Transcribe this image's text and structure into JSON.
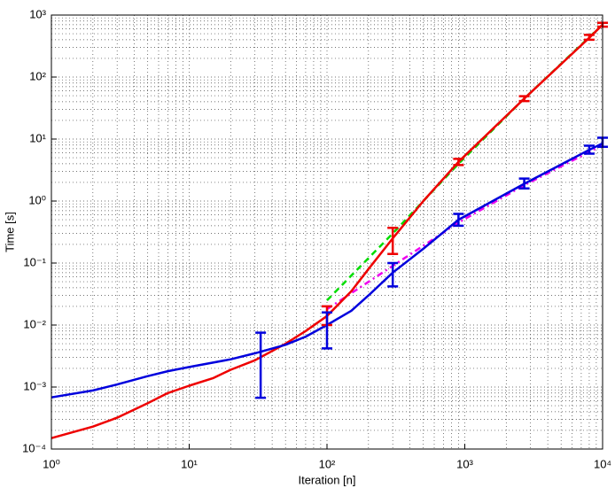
{
  "chart_data": {
    "type": "line",
    "xlabel": "Iteration [n]",
    "ylabel": "Time [s]",
    "xscale": "log",
    "yscale": "log",
    "grid": true,
    "minor_grid": true,
    "xlim": [
      1,
      10000
    ],
    "ylim": [
      0.0001,
      1000
    ],
    "xticks": [
      {
        "value": 1,
        "label": "10⁰"
      },
      {
        "value": 10,
        "label": "10¹"
      },
      {
        "value": 100,
        "label": "10²"
      },
      {
        "value": 1000,
        "label": "10³"
      },
      {
        "value": 10000,
        "label": "10⁴"
      }
    ],
    "yticks": [
      {
        "value": 0.0001,
        "label": "10⁻⁴"
      },
      {
        "value": 0.001,
        "label": "10⁻³"
      },
      {
        "value": 0.01,
        "label": "10⁻²"
      },
      {
        "value": 0.1,
        "label": "10⁻¹"
      },
      {
        "value": 1,
        "label": "10⁰"
      },
      {
        "value": 10,
        "label": "10¹"
      },
      {
        "value": 100,
        "label": "10²"
      },
      {
        "value": 1000,
        "label": "10³"
      }
    ],
    "series": [
      {
        "kind": "line",
        "color": "#00dd00",
        "dash": "7 5",
        "x": [
          100,
          300,
          900,
          2700,
          10000
        ],
        "values": [
          0.025,
          0.3,
          4.0,
          45,
          700
        ]
      },
      {
        "kind": "line",
        "color": "#ee00ee",
        "dash": "7 4 2 4",
        "x": [
          100,
          300,
          900,
          2700,
          10000
        ],
        "values": [
          0.018,
          0.09,
          0.45,
          1.8,
          8
        ]
      },
      {
        "kind": "line",
        "color": "#ee0000",
        "x": [
          1,
          2,
          3,
          5,
          7,
          10,
          15,
          20,
          30,
          50,
          70,
          100,
          150,
          200,
          300,
          500,
          900,
          2700,
          8000,
          10000
        ],
        "values": [
          0.00015,
          0.00023,
          0.00032,
          0.00055,
          0.0008,
          0.00105,
          0.0014,
          0.0019,
          0.0027,
          0.005,
          0.008,
          0.014,
          0.035,
          0.08,
          0.25,
          1.0,
          4.3,
          45,
          430,
          700
        ]
      },
      {
        "kind": "line",
        "color": "#0000dd",
        "x": [
          1,
          2,
          3,
          5,
          7,
          10,
          20,
          30,
          50,
          70,
          100,
          150,
          200,
          300,
          500,
          900,
          2700,
          8000,
          10000
        ],
        "values": [
          0.00068,
          0.00088,
          0.0011,
          0.0015,
          0.0018,
          0.0021,
          0.0028,
          0.0035,
          0.0048,
          0.0065,
          0.01,
          0.017,
          0.03,
          0.07,
          0.17,
          0.5,
          1.9,
          6.7,
          8.5
        ]
      },
      {
        "kind": "errorbar",
        "color": "#ee0000",
        "x": [
          100,
          300,
          900,
          2700,
          8000,
          10000
        ],
        "values": [
          0.015,
          0.255,
          4.3,
          45,
          440,
          700
        ],
        "error": [
          0.005,
          0.115,
          0.5,
          4,
          40,
          50
        ]
      },
      {
        "kind": "errorbar",
        "color": "#0000dd",
        "x": [
          33,
          100,
          300,
          900,
          2700,
          8000,
          10000
        ],
        "values": [
          0.0041,
          0.0101,
          0.071,
          0.51,
          1.95,
          6.8,
          9
        ],
        "error": [
          0.00343,
          0.0059,
          0.029,
          0.11,
          0.35,
          1,
          1.5
        ]
      }
    ]
  }
}
